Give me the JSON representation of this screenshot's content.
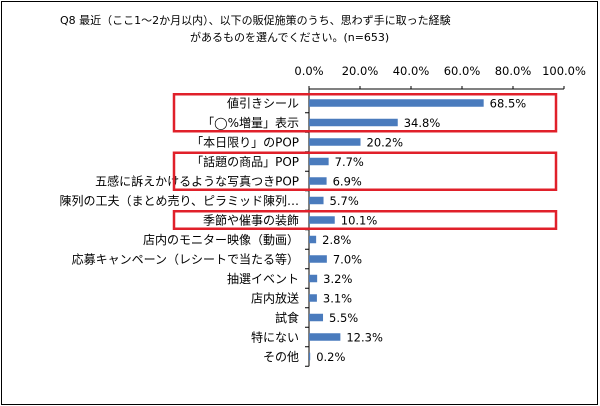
{
  "question": {
    "line1": "Q8 最近（ここ1～2か月以内）、以下の販促施策のうち、思わず手に取った経験",
    "line2": "があるものを選んでください。(n=653)"
  },
  "colors": {
    "bar": "#4a7bbd",
    "highlight": "#e0202a",
    "axis": "#000000"
  },
  "chart_data": {
    "type": "bar",
    "orientation": "horizontal",
    "title": "Q8 最近（ここ1～2か月以内）、以下の販促施策のうち、思わず手に取った経験があるものを選んでください。(n=653)",
    "xlim": [
      0,
      100
    ],
    "x_ticks": [
      "0.0%",
      "20.0%",
      "40.0%",
      "60.0%",
      "80.0%",
      "100.0%"
    ],
    "x_axis_position": "top",
    "grid": false,
    "categories": [
      "値引きシール",
      "「◯%増量」表示",
      "「本日限り」のPOP",
      "「話題の商品」POP",
      "五感に訴えかけるような写真つきPOP",
      "陳列の工夫（まとめ売り、ピラミッド陳列…",
      "季節や催事の装飾",
      "店内のモニター映像（動画）",
      "応募キャンペーン（レシートで当たる等）",
      "抽選イベント",
      "店内放送",
      "試食",
      "特にない",
      "その他"
    ],
    "values": [
      68.5,
      34.8,
      20.2,
      7.7,
      6.9,
      5.7,
      10.1,
      2.8,
      7.0,
      3.2,
      3.1,
      5.5,
      12.3,
      0.2
    ],
    "labels": [
      "68.5%",
      "34.8%",
      "20.2%",
      "7.7%",
      "6.9%",
      "5.7%",
      "10.1%",
      "2.8%",
      "7.0%",
      "3.2%",
      "3.1%",
      "5.5%",
      "12.3%",
      "0.2%"
    ],
    "highlight_groups": [
      [
        0,
        1
      ],
      [
        3,
        4
      ],
      [
        6
      ]
    ]
  }
}
